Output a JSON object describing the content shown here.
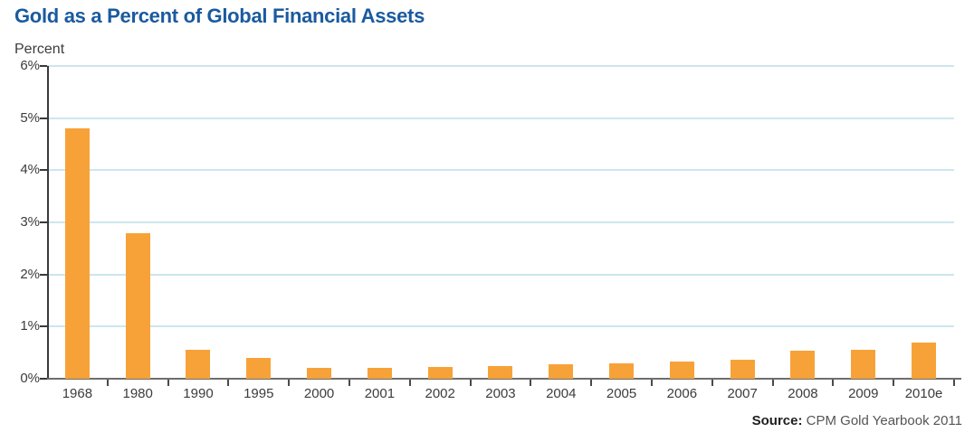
{
  "header": {
    "title": "Gold as a Percent of Global Financial Assets",
    "unit_label": "Percent"
  },
  "source": {
    "label": "Source:",
    "text": " CPM Gold Yearbook 2011"
  },
  "colors": {
    "title_blue": "#1A5A9F",
    "bar_orange": "#F7A238",
    "gridline_blue": "#CDE6EF",
    "axis_dark": "#3A3A3A",
    "baseline_gray": "#6E6E6E",
    "text_dark": "#3C3C3C"
  },
  "chart_data": {
    "type": "bar",
    "title": "Gold as a Percent of Global Financial Assets",
    "xlabel": "",
    "ylabel": "Percent",
    "categories": [
      "1968",
      "1980",
      "1990",
      "1995",
      "2000",
      "2001",
      "2002",
      "2003",
      "2004",
      "2005",
      "2006",
      "2007",
      "2008",
      "2009",
      "2010e"
    ],
    "values": [
      4.8,
      2.8,
      0.55,
      0.4,
      0.2,
      0.2,
      0.22,
      0.25,
      0.27,
      0.3,
      0.33,
      0.36,
      0.53,
      0.55,
      0.7
    ],
    "ylim": [
      0,
      6
    ],
    "yticks": [
      0,
      1,
      2,
      3,
      4,
      5,
      6
    ],
    "ytick_labels": [
      "0%",
      "1%",
      "2%",
      "3%",
      "4%",
      "5%",
      "6%"
    ],
    "grid": true,
    "gridlines_at": [
      1,
      2,
      3,
      4,
      5,
      6
    ],
    "legend": false,
    "source": "Source: CPM Gold Yearbook 2011"
  }
}
